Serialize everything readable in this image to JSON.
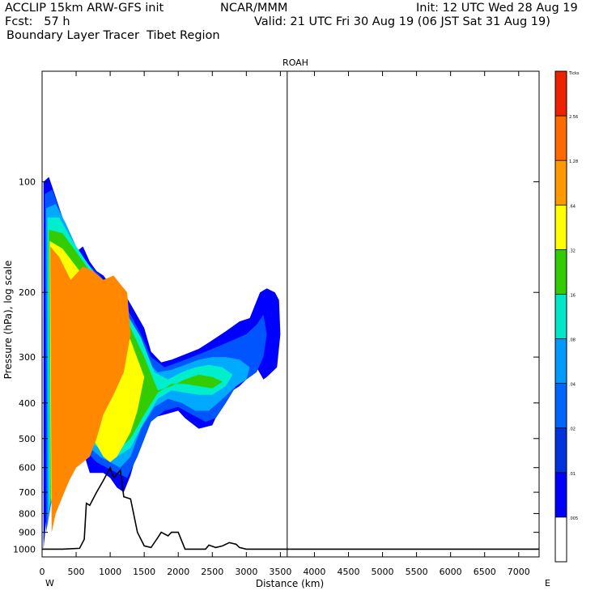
{
  "header": {
    "line1_left": "ACCLIP 15km ARW-GFS init",
    "line1_center": "NCAR/MMM",
    "line1_right": "Init: 12 UTC Wed 28 Aug 19",
    "line2_left": "Fcst:   57 h",
    "line2_right": "Valid: 21 UTC Fri 30 Aug 19 (06 JST Sat 31 Aug 19)",
    "line3_left": "Boundary Layer Tracer  Tibet Region"
  },
  "chart_data": {
    "type": "heatmap",
    "title": "ROAH",
    "xlabel": "Distance (km)",
    "ylabel": "Pressure (hPa), log scale",
    "x_ticks": [
      "0",
      "500",
      "1000",
      "1500",
      "2000",
      "2500",
      "3000",
      "3500",
      "4000",
      "4500",
      "5000",
      "5500",
      "6000",
      "6500",
      "7000"
    ],
    "x_tick_values": [
      0,
      500,
      1000,
      1500,
      2000,
      2500,
      3000,
      3500,
      4000,
      4500,
      5000,
      5500,
      6000,
      6500,
      7000
    ],
    "y_ticks": [
      "100",
      "200",
      "300",
      "400",
      "500",
      "600",
      "700",
      "800",
      "900",
      "1000"
    ],
    "y_tick_values": [
      100,
      200,
      300,
      400,
      500,
      600,
      700,
      800,
      900,
      1000
    ],
    "xlim": [
      0,
      7300
    ],
    "ylim": [
      1050,
      50
    ],
    "y_scale": "log",
    "left_end_label": "W",
    "right_end_label": "E",
    "marker_distance_km": 3600,
    "colorbar": {
      "levels": [
        "Ticks",
        "2.56",
        "1.28",
        ".64",
        ".32",
        ".16",
        ".08",
        ".04",
        ".02",
        ".01",
        ".005"
      ],
      "colors": [
        "#ee2200",
        "#ff6a00",
        "#ff9900",
        "#ffff00",
        "#33cc00",
        "#00e6c8",
        "#0099ff",
        "#0066ff",
        "#0033dd",
        "#0000ff",
        "#ffffff"
      ]
    },
    "terrain": {
      "x": [
        0,
        300,
        550,
        620,
        650,
        700,
        800,
        900,
        1000,
        1050,
        1150,
        1200,
        1300,
        1400,
        1500,
        1600,
        1700,
        1750,
        1850,
        1900,
        2000,
        2100,
        2400,
        2450,
        2550,
        2650,
        2750,
        2850,
        2900,
        3000,
        3500,
        7300
      ],
      "p": [
        1000,
        1000,
        995,
        940,
        750,
        760,
        700,
        650,
        600,
        640,
        610,
        720,
        730,
        900,
        980,
        990,
        930,
        900,
        920,
        900,
        900,
        1000,
        1000,
        975,
        990,
        980,
        960,
        970,
        990,
        1000,
        1000,
        1000
      ]
    },
    "plume_layers": [
      {
        "level": ".01",
        "color": "#0000ff",
        "x": [
          20,
          100,
          200,
          300,
          400,
          500,
          600,
          700,
          800,
          900,
          1000,
          1200,
          1300,
          1500,
          1600,
          1750,
          1900,
          2100,
          2300,
          2500,
          2700,
          2900,
          3050,
          3200,
          3300,
          3420,
          3480,
          3500,
          3450,
          3300,
          3250,
          3150,
          3100,
          3000,
          2900,
          2800,
          2650,
          2500,
          2300,
          2100,
          2000,
          1800,
          1600,
          1450,
          1300,
          1200,
          1100,
          1000,
          900,
          700,
          600,
          400,
          250,
          100,
          20
        ],
        "p": [
          100,
          97,
          110,
          125,
          140,
          155,
          150,
          165,
          175,
          180,
          190,
          200,
          215,
          250,
          290,
          310,
          305,
          295,
          285,
          270,
          255,
          240,
          235,
          200,
          195,
          200,
          210,
          260,
          320,
          340,
          345,
          320,
          335,
          345,
          360,
          370,
          400,
          460,
          470,
          440,
          420,
          430,
          440,
          500,
          630,
          700,
          680,
          640,
          620,
          620,
          540,
          550,
          600,
          700,
          1000
        ]
      },
      {
        "level": ".02",
        "color": "#0055ff",
        "x": [
          40,
          150,
          250,
          350,
          450,
          550,
          700,
          850,
          1000,
          1150,
          1300,
          1450,
          1600,
          1800,
          2000,
          2200,
          2400,
          2600,
          2800,
          3000,
          3150,
          3250,
          3300,
          3250,
          3150,
          3000,
          2850,
          2700,
          2550,
          2400,
          2200,
          2000,
          1800,
          1600,
          1400,
          1250,
          1100,
          950,
          800,
          600,
          450,
          300,
          150,
          60
        ],
        "p": [
          108,
          105,
          118,
          132,
          148,
          162,
          170,
          180,
          195,
          210,
          230,
          260,
          300,
          320,
          310,
          300,
          290,
          280,
          270,
          260,
          245,
          230,
          260,
          300,
          330,
          345,
          360,
          400,
          440,
          450,
          430,
          410,
          420,
          450,
          560,
          640,
          620,
          600,
          580,
          530,
          520,
          600,
          720,
          900
        ]
      },
      {
        "level": ".04",
        "color": "#00aaff",
        "x": [
          60,
          200,
          350,
          500,
          650,
          800,
          950,
          1100,
          1250,
          1400,
          1550,
          1700,
          1900,
          2100,
          2300,
          2500,
          2700,
          2900,
          3050,
          3000,
          2850,
          2650,
          2450,
          2250,
          2050,
          1850,
          1650,
          1450,
          1300,
          1150,
          1000,
          850,
          650,
          450,
          300,
          150,
          80
        ],
        "p": [
          118,
          115,
          130,
          150,
          165,
          180,
          195,
          215,
          235,
          265,
          310,
          330,
          325,
          315,
          305,
          300,
          300,
          305,
          320,
          345,
          360,
          390,
          420,
          420,
          400,
          390,
          410,
          470,
          560,
          600,
          580,
          560,
          520,
          520,
          580,
          680,
          850
        ]
      },
      {
        "level": ".08",
        "color": "#00eecc",
        "x": [
          80,
          250,
          450,
          650,
          850,
          1050,
          1250,
          1450,
          1650,
          1850,
          2050,
          2250,
          2450,
          2650,
          2800,
          2700,
          2500,
          2300,
          2100,
          1900,
          1700,
          1500,
          1300,
          1100,
          900,
          700,
          500,
          300,
          150,
          100
        ],
        "p": [
          125,
          125,
          145,
          165,
          185,
          205,
          230,
          265,
          330,
          345,
          330,
          320,
          315,
          320,
          335,
          360,
          380,
          380,
          375,
          370,
          390,
          450,
          530,
          560,
          540,
          510,
          500,
          560,
          650,
          800
        ]
      },
      {
        "level": ".16",
        "color": "#33cc00",
        "x": [
          100,
          300,
          500,
          700,
          900,
          1100,
          1300,
          1500,
          1700,
          1900,
          2100,
          2300,
          2500,
          2650,
          2500,
          2300,
          2100,
          1900,
          1700,
          1500,
          1300,
          1100,
          900,
          700,
          500,
          300,
          150,
          120
        ],
        "p": [
          135,
          138,
          155,
          175,
          195,
          220,
          250,
          300,
          370,
          360,
          345,
          335,
          340,
          350,
          365,
          360,
          355,
          355,
          375,
          430,
          500,
          540,
          520,
          490,
          480,
          530,
          620,
          770
        ]
      },
      {
        "level": ".32",
        "color": "#ffff00",
        "x": [
          110,
          300,
          500,
          700,
          900,
          1100,
          1300,
          1500,
          1400,
          1300,
          1200,
          1100,
          1000,
          900,
          800,
          700,
          600,
          500,
          400,
          300,
          200,
          130
        ],
        "p": [
          145,
          152,
          170,
          190,
          210,
          235,
          270,
          340,
          420,
          480,
          520,
          560,
          580,
          560,
          520,
          480,
          470,
          470,
          500,
          540,
          620,
          750
        ]
      },
      {
        "level": ".64",
        "color": "#ff8800",
        "x": [
          120,
          250,
          420,
          600,
          750,
          900,
          1050,
          1150,
          1250,
          1300,
          1200,
          1050,
          900,
          800,
          700,
          600,
          500,
          400,
          300,
          200,
          140
        ],
        "p": [
          150,
          160,
          185,
          170,
          175,
          185,
          180,
          190,
          200,
          260,
          330,
          380,
          430,
          500,
          560,
          580,
          600,
          650,
          720,
          800,
          900
        ]
      }
    ]
  }
}
